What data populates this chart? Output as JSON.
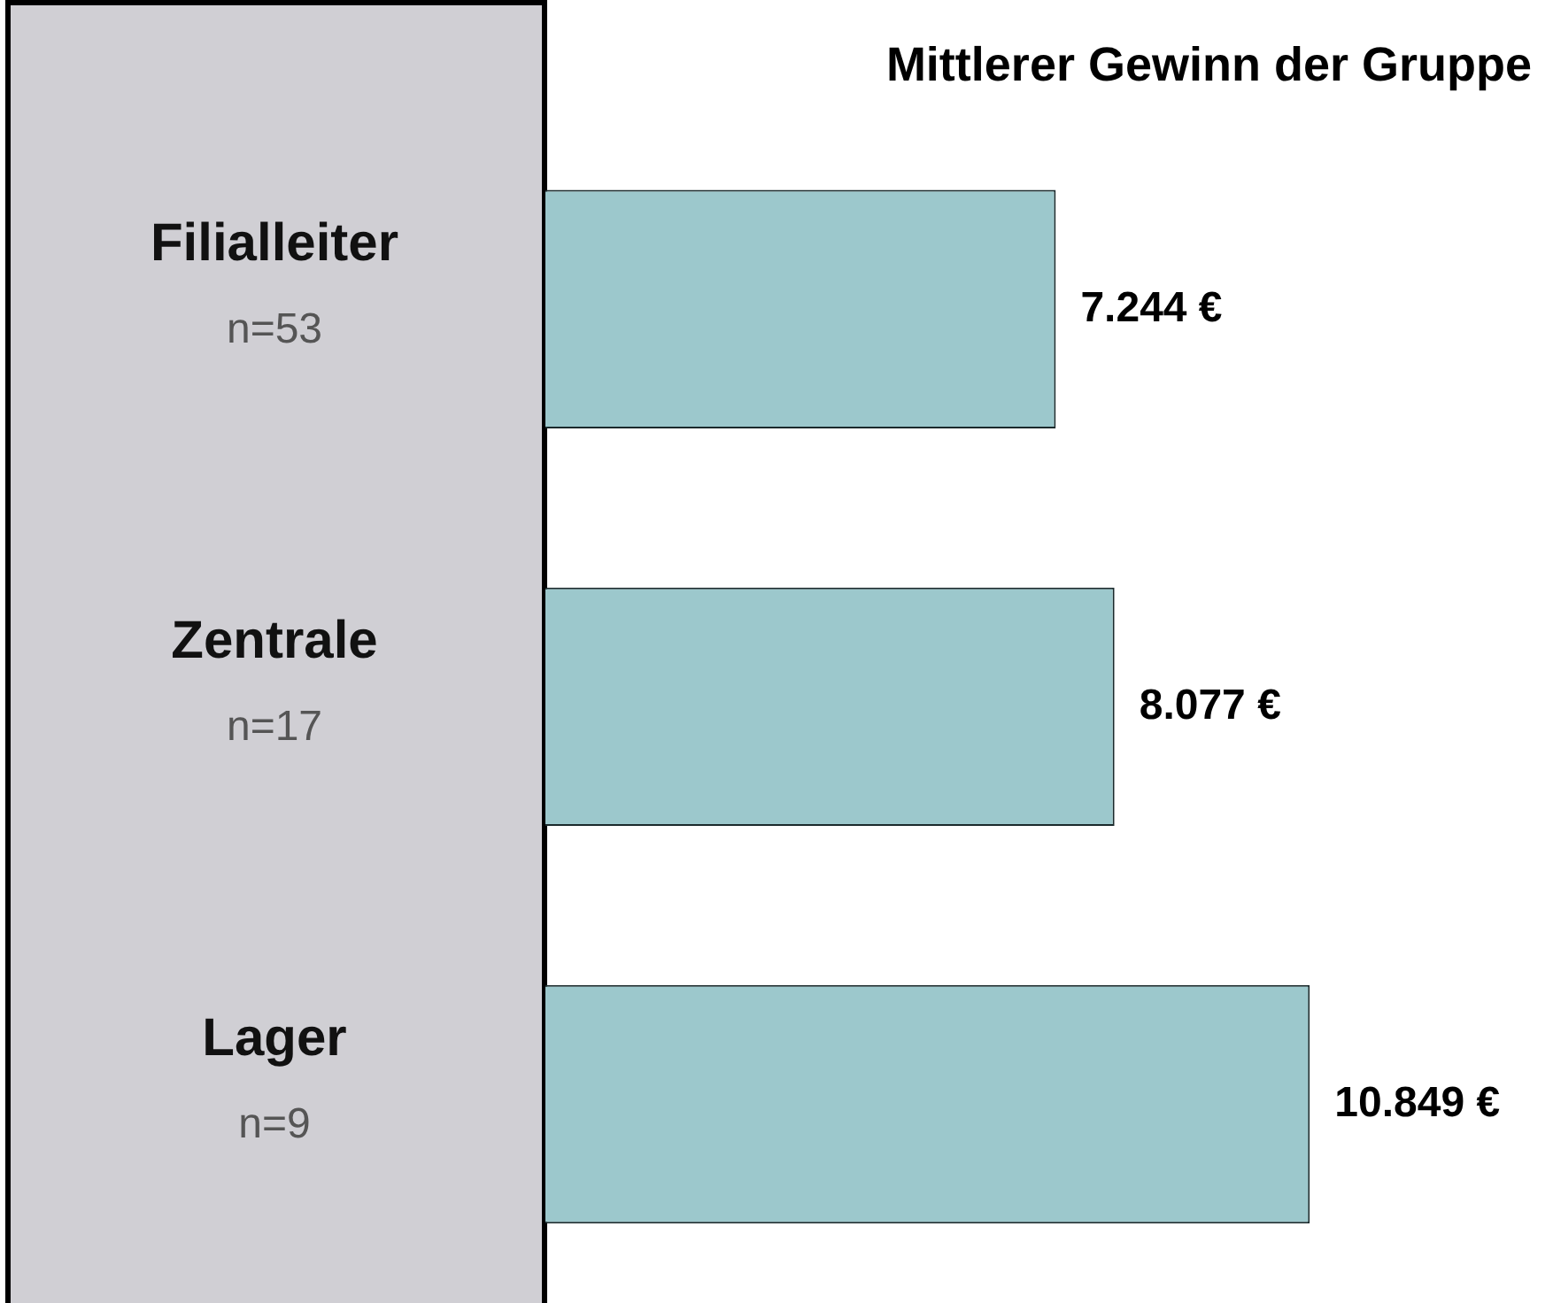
{
  "chart_data": {
    "type": "bar",
    "orientation": "horizontal",
    "title": "Mittlerer Gewinn der Gruppe",
    "categories": [
      "Filialleiter\nn=53",
      "Zentrale\nn=17",
      "Lager\nn=9"
    ],
    "values": [
      7244,
      8077,
      10849
    ],
    "value_labels": [
      "7.244 €",
      "8.077 €",
      "10.849 €"
    ],
    "color": "#9cc8cc"
  }
}
